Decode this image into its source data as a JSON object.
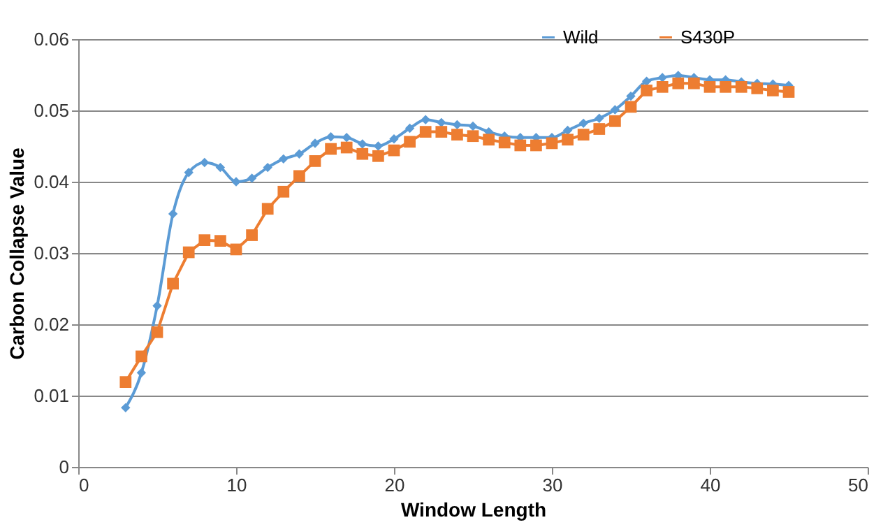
{
  "chart_data": {
    "type": "line",
    "xlabel": "Window Length",
    "ylabel": "Carbon Collapse Value",
    "xlim": [
      0,
      50
    ],
    "xticks": [
      0,
      10,
      20,
      30,
      40,
      50
    ],
    "ylim": [
      0,
      0.06
    ],
    "yticks": [
      0,
      0.01,
      0.02,
      0.03,
      0.04,
      0.05,
      0.06
    ],
    "grid": "y",
    "legend": "top right",
    "x": [
      3,
      4,
      5,
      6,
      7,
      8,
      9,
      10,
      11,
      12,
      13,
      14,
      15,
      16,
      17,
      18,
      19,
      20,
      21,
      22,
      23,
      24,
      25,
      26,
      27,
      28,
      29,
      30,
      31,
      32,
      33,
      34,
      35,
      36,
      37,
      38,
      39,
      40,
      41,
      42,
      43,
      44,
      45
    ],
    "series": [
      {
        "name": "Wild",
        "color": "#5b9bd5",
        "marker": "diamond",
        "values": [
          0.0083,
          0.0132,
          0.0226,
          0.0355,
          0.0413,
          0.0427,
          0.042,
          0.04,
          0.0405,
          0.042,
          0.0432,
          0.0439,
          0.0454,
          0.0463,
          0.0462,
          0.0453,
          0.045,
          0.046,
          0.0475,
          0.0487,
          0.0483,
          0.048,
          0.0478,
          0.047,
          0.0464,
          0.0462,
          0.0462,
          0.0462,
          0.0472,
          0.0482,
          0.0489,
          0.0501,
          0.052,
          0.0541,
          0.0546,
          0.0549,
          0.0546,
          0.0543,
          0.0543,
          0.054,
          0.0538,
          0.0537,
          0.0535
        ]
      },
      {
        "name": "S430P",
        "color": "#ed7d31",
        "marker": "square",
        "values": [
          0.0119,
          0.0155,
          0.0189,
          0.0257,
          0.0301,
          0.0318,
          0.0317,
          0.0305,
          0.0325,
          0.0362,
          0.0386,
          0.0408,
          0.0429,
          0.0446,
          0.0448,
          0.0439,
          0.0436,
          0.0444,
          0.0456,
          0.047,
          0.047,
          0.0466,
          0.0464,
          0.0459,
          0.0455,
          0.0451,
          0.0451,
          0.0454,
          0.0459,
          0.0466,
          0.0474,
          0.0485,
          0.0505,
          0.0528,
          0.0533,
          0.0538,
          0.0538,
          0.0533,
          0.0533,
          0.0533,
          0.0531,
          0.0528,
          0.0526
        ]
      }
    ]
  }
}
